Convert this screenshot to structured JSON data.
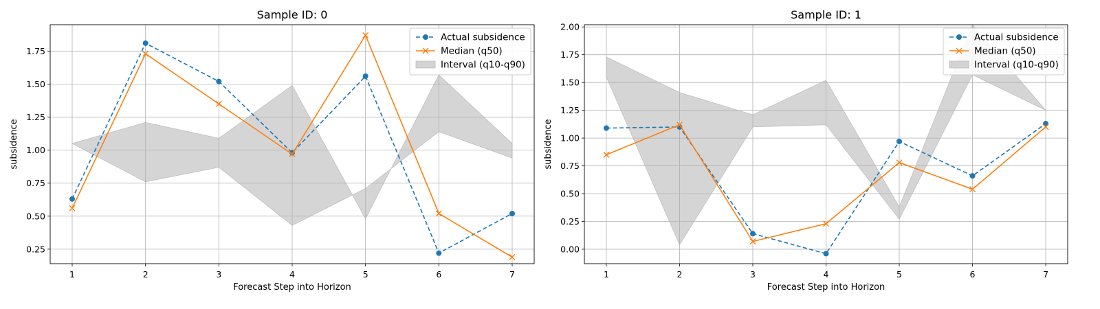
{
  "chart_data": [
    {
      "type": "line",
      "title": "Sample ID: 0",
      "xlabel": "Forecast Step into Horizon",
      "ylabel": "subsidence",
      "x": [
        1,
        2,
        3,
        4,
        5,
        6,
        7
      ],
      "xticks": [
        "1",
        "2",
        "3",
        "4",
        "5",
        "6",
        "7"
      ],
      "yticks": [
        "0.25",
        "0.50",
        "0.75",
        "1.00",
        "1.25",
        "1.50",
        "1.75"
      ],
      "xlim": [
        0.7,
        7.3
      ],
      "ylim": [
        0.14,
        1.95
      ],
      "grid": true,
      "legend_position": "top-right",
      "series": [
        {
          "name": "Actual subsidence",
          "style": "dashed",
          "marker": "circle",
          "color": "#1f77b4",
          "values": [
            0.63,
            1.81,
            1.52,
            0.98,
            1.56,
            0.22,
            0.52
          ]
        },
        {
          "name": "Median (q50)",
          "style": "solid",
          "marker": "x",
          "color": "#ff7f0e",
          "values": [
            0.56,
            1.73,
            1.35,
            0.97,
            1.87,
            0.52,
            0.19
          ]
        }
      ],
      "interval": {
        "name": "Interval (q10-q90)",
        "color": "#d3d3d3",
        "q10": [
          1.05,
          0.76,
          0.87,
          0.43,
          0.71,
          1.14,
          0.94
        ],
        "q90": [
          1.05,
          1.21,
          1.09,
          1.49,
          0.48,
          1.57,
          1.05
        ]
      }
    },
    {
      "type": "line",
      "title": "Sample ID: 1",
      "xlabel": "Forecast Step into Horizon",
      "ylabel": "subsidence",
      "x": [
        1,
        2,
        3,
        4,
        5,
        6,
        7
      ],
      "xticks": [
        "1",
        "2",
        "3",
        "4",
        "5",
        "6",
        "7"
      ],
      "yticks": [
        "0.00",
        "0.25",
        "0.50",
        "0.75",
        "1.00",
        "1.25",
        "1.50",
        "1.75",
        "2.00"
      ],
      "xlim": [
        0.7,
        7.3
      ],
      "ylim": [
        -0.13,
        2.02
      ],
      "grid": true,
      "legend_position": "top-right",
      "series": [
        {
          "name": "Actual subsidence",
          "style": "dashed",
          "marker": "circle",
          "color": "#1f77b4",
          "values": [
            1.09,
            1.1,
            0.14,
            -0.04,
            0.97,
            0.66,
            1.13
          ]
        },
        {
          "name": "Median (q50)",
          "style": "solid",
          "marker": "x",
          "color": "#ff7f0e",
          "values": [
            0.85,
            1.12,
            0.07,
            0.23,
            0.78,
            0.54,
            1.1
          ]
        }
      ],
      "interval": {
        "name": "Interval (q10-q90)",
        "color": "#d3d3d3",
        "q10": [
          1.55,
          0.04,
          1.1,
          1.12,
          0.27,
          1.57,
          1.25
        ],
        "q90": [
          1.73,
          1.41,
          1.21,
          1.52,
          0.38,
          2.02,
          1.25
        ]
      }
    }
  ]
}
